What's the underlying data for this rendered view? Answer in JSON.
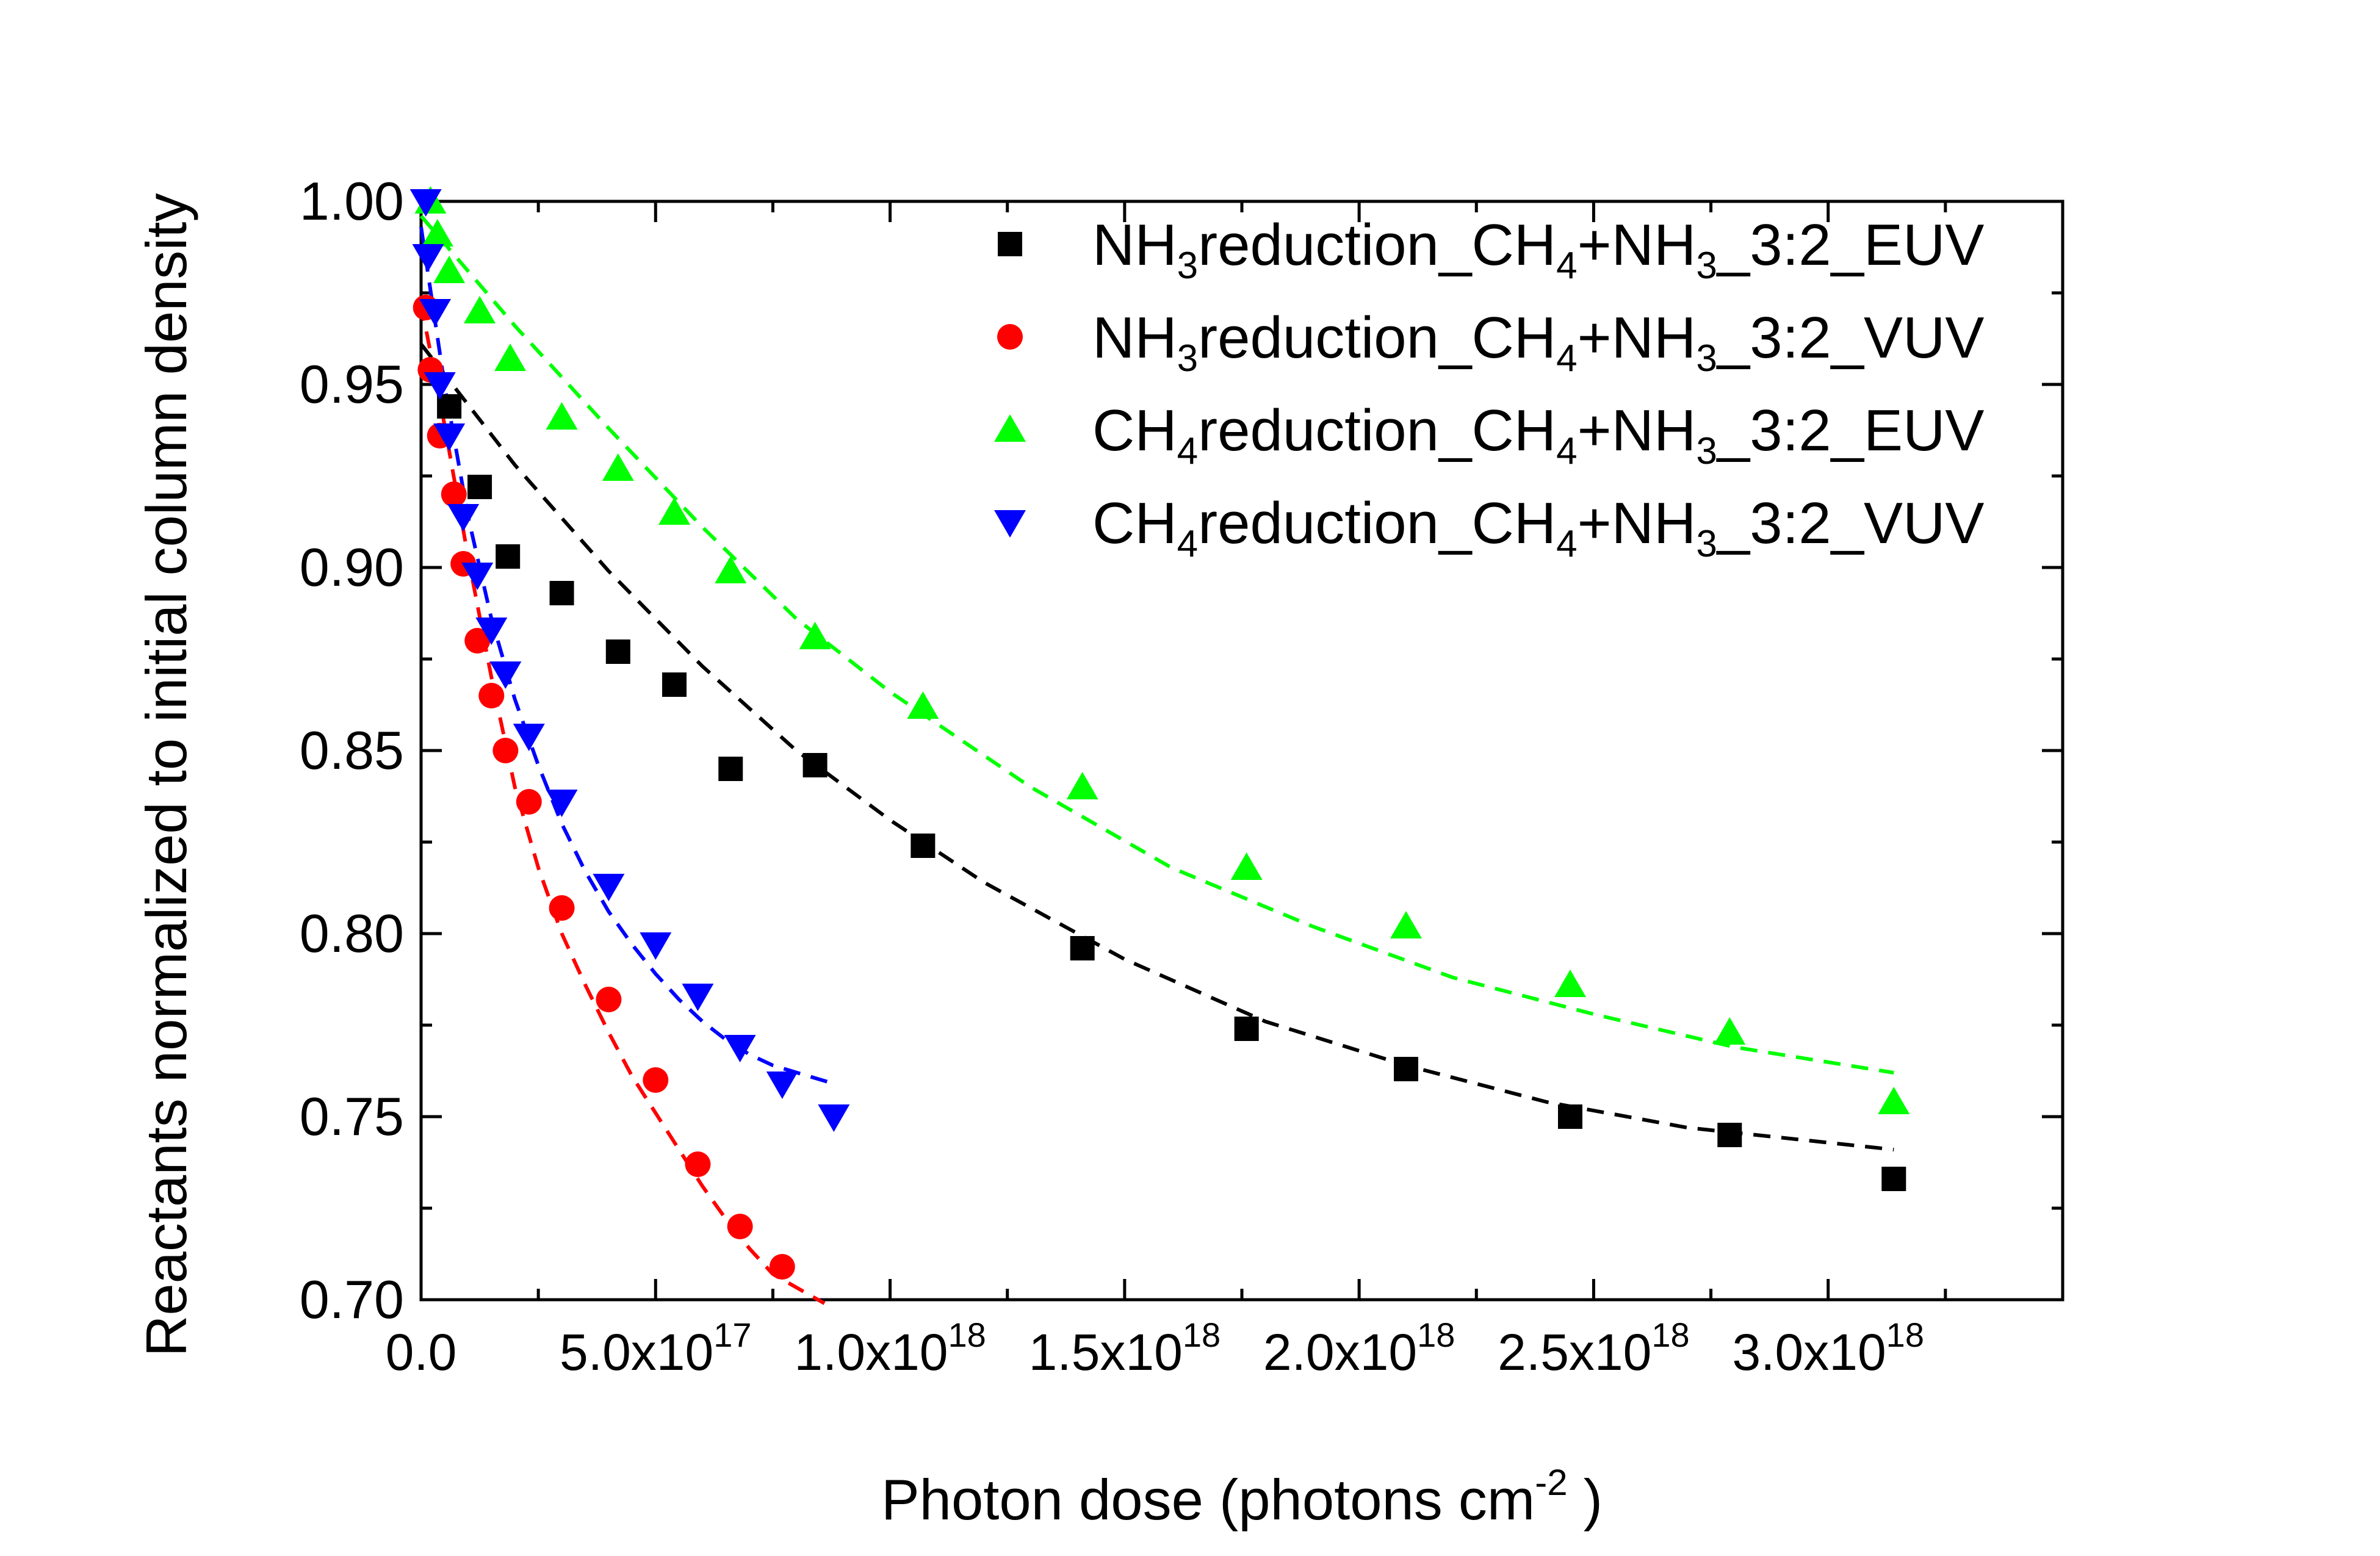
{
  "chart_data": {
    "type": "scatter",
    "xlabel": "Photon dose (photons cm",
    "xlabel_sup": "-2",
    "xlabel_end": " )",
    "ylabel": "Reactants normalized to initial column density",
    "xlim": [
      0,
      3.5e+18
    ],
    "ylim": [
      0.7,
      1.0
    ],
    "x_ticks": [
      {
        "value": 0,
        "label": "0.0",
        "exp": ""
      },
      {
        "value": 5e+17,
        "label": "5.0x10",
        "exp": "17"
      },
      {
        "value": 1e+18,
        "label": "1.0x10",
        "exp": "18"
      },
      {
        "value": 1.5e+18,
        "label": "1.5x10",
        "exp": "18"
      },
      {
        "value": 2e+18,
        "label": "2.0x10",
        "exp": "18"
      },
      {
        "value": 2.5e+18,
        "label": "2.5x10",
        "exp": "18"
      },
      {
        "value": 3e+18,
        "label": "3.0x10",
        "exp": "18"
      }
    ],
    "y_ticks": [
      {
        "value": 0.7,
        "label": "0.70"
      },
      {
        "value": 0.75,
        "label": "0.75"
      },
      {
        "value": 0.8,
        "label": "0.80"
      },
      {
        "value": 0.85,
        "label": "0.85"
      },
      {
        "value": 0.9,
        "label": "0.90"
      },
      {
        "value": 0.95,
        "label": "0.95"
      },
      {
        "value": 1.0,
        "label": "1.00"
      }
    ],
    "grid": false,
    "legend_position": "top-right",
    "series": [
      {
        "name_parts": [
          "NH",
          "3",
          "reduction_CH",
          "4",
          "+NH",
          "3",
          "_3:2_EUV"
        ],
        "marker": "square",
        "color": "#000000",
        "points": [
          [
            6e+16,
            0.944
          ],
          [
            1.25e+17,
            0.922
          ],
          [
            1.85e+17,
            0.903
          ],
          [
            3e+17,
            0.893
          ],
          [
            4.2e+17,
            0.877
          ],
          [
            5.4e+17,
            0.868
          ],
          [
            6.6e+17,
            0.845
          ],
          [
            8.4e+17,
            0.846
          ],
          [
            1.07e+18,
            0.824
          ],
          [
            1.41e+18,
            0.796
          ],
          [
            1.76e+18,
            0.774
          ],
          [
            2.1e+18,
            0.763
          ],
          [
            2.45e+18,
            0.75
          ],
          [
            2.79e+18,
            0.745
          ],
          [
            3.14e+18,
            0.733
          ]
        ],
        "fit": [
          [
            0,
            0.961
          ],
          [
            2e+17,
            0.928
          ],
          [
            4e+17,
            0.899
          ],
          [
            6e+17,
            0.873
          ],
          [
            8e+17,
            0.85
          ],
          [
            1e+18,
            0.831
          ],
          [
            1.2e+18,
            0.814
          ],
          [
            1.5e+18,
            0.793
          ],
          [
            1.8e+18,
            0.776
          ],
          [
            2.1e+18,
            0.764
          ],
          [
            2.4e+18,
            0.754
          ],
          [
            2.7e+18,
            0.747
          ],
          [
            3.14e+18,
            0.741
          ]
        ]
      },
      {
        "name_parts": [
          "NH",
          "3",
          "reduction_CH",
          "4",
          "+NH",
          "3",
          "_3:2_VUV"
        ],
        "marker": "circle",
        "color": "#ff0000",
        "points": [
          [
            1e+16,
            0.971
          ],
          [
            2e+16,
            0.954
          ],
          [
            4e+16,
            0.936
          ],
          [
            7e+16,
            0.92
          ],
          [
            9e+16,
            0.901
          ],
          [
            1.2e+17,
            0.88
          ],
          [
            1.5e+17,
            0.865
          ],
          [
            1.8e+17,
            0.85
          ],
          [
            2.3e+17,
            0.836
          ],
          [
            3e+17,
            0.807
          ],
          [
            4e+17,
            0.782
          ],
          [
            5e+17,
            0.76
          ],
          [
            5.9e+17,
            0.737
          ],
          [
            6.8e+17,
            0.72
          ],
          [
            7.7e+17,
            0.709
          ]
        ],
        "fit": [
          [
            0,
            0.972
          ],
          [
            5e+16,
            0.939
          ],
          [
            1e+17,
            0.903
          ],
          [
            1.5e+17,
            0.87
          ],
          [
            2e+17,
            0.84
          ],
          [
            2.5e+17,
            0.818
          ],
          [
            3e+17,
            0.8
          ],
          [
            3.5e+17,
            0.786
          ],
          [
            4e+17,
            0.773
          ],
          [
            4.5e+17,
            0.761
          ],
          [
            5e+17,
            0.751
          ],
          [
            5.5e+17,
            0.741
          ],
          [
            6e+17,
            0.731
          ],
          [
            6.5e+17,
            0.722
          ],
          [
            7e+17,
            0.714
          ],
          [
            7.5e+17,
            0.707
          ],
          [
            8.6e+17,
            0.699
          ]
        ]
      },
      {
        "name_parts": [
          "CH",
          "4",
          "reduction_CH",
          "4",
          "+NH",
          "3",
          "_3:2_EUV"
        ],
        "marker": "triangle-up",
        "color": "#00ff00",
        "points": [
          [
            2e+16,
            1.0
          ],
          [
            3.5e+16,
            0.991
          ],
          [
            6e+16,
            0.981
          ],
          [
            1.25e+17,
            0.97
          ],
          [
            1.9e+17,
            0.957
          ],
          [
            3e+17,
            0.941
          ],
          [
            4.2e+17,
            0.927
          ],
          [
            5.4e+17,
            0.915
          ],
          [
            6.6e+17,
            0.899
          ],
          [
            8.4e+17,
            0.881
          ],
          [
            1.07e+18,
            0.862
          ],
          [
            1.41e+18,
            0.84
          ],
          [
            1.76e+18,
            0.818
          ],
          [
            2.1e+18,
            0.802
          ],
          [
            2.45e+18,
            0.786
          ],
          [
            2.79e+18,
            0.773
          ],
          [
            3.14e+18,
            0.754
          ]
        ],
        "fit": [
          [
            0,
            0.996
          ],
          [
            2e+17,
            0.966
          ],
          [
            4e+17,
            0.938
          ],
          [
            6e+17,
            0.911
          ],
          [
            8e+17,
            0.886
          ],
          [
            1e+18,
            0.866
          ],
          [
            1.3e+18,
            0.84
          ],
          [
            1.6e+18,
            0.818
          ],
          [
            1.9e+18,
            0.802
          ],
          [
            2.2e+18,
            0.788
          ],
          [
            2.5e+18,
            0.778
          ],
          [
            2.8e+18,
            0.769
          ],
          [
            3.14e+18,
            0.762
          ]
        ]
      },
      {
        "name_parts": [
          "CH",
          "4",
          "reduction_CH",
          "4",
          "+NH",
          "3",
          "_3:2_VUV"
        ],
        "marker": "triangle-down",
        "color": "#0000ff",
        "points": [
          [
            1e+16,
            1.0
          ],
          [
            1.5e+16,
            0.985
          ],
          [
            3e+16,
            0.97
          ],
          [
            4e+16,
            0.95
          ],
          [
            6e+16,
            0.936
          ],
          [
            9e+16,
            0.914
          ],
          [
            1.2e+17,
            0.898
          ],
          [
            1.5e+17,
            0.883
          ],
          [
            1.8e+17,
            0.871
          ],
          [
            2.3e+17,
            0.854
          ],
          [
            3e+17,
            0.836
          ],
          [
            4e+17,
            0.813
          ],
          [
            5e+17,
            0.797
          ],
          [
            5.9e+17,
            0.783
          ],
          [
            6.8e+17,
            0.769
          ],
          [
            7.7e+17,
            0.759
          ],
          [
            8.8e+17,
            0.75
          ]
        ],
        "fit": [
          [
            0,
            0.993
          ],
          [
            5e+16,
            0.95
          ],
          [
            1e+17,
            0.914
          ],
          [
            1.5e+17,
            0.886
          ],
          [
            2e+17,
            0.864
          ],
          [
            2.5e+17,
            0.846
          ],
          [
            3e+17,
            0.83
          ],
          [
            3.5e+17,
            0.817
          ],
          [
            4e+17,
            0.806
          ],
          [
            4.5e+17,
            0.797
          ],
          [
            5e+17,
            0.789
          ],
          [
            5.5e+17,
            0.782
          ],
          [
            6e+17,
            0.776
          ],
          [
            6.5e+17,
            0.771
          ],
          [
            7e+17,
            0.767
          ],
          [
            7.5e+17,
            0.764
          ],
          [
            8.8e+17,
            0.759
          ]
        ]
      }
    ]
  }
}
